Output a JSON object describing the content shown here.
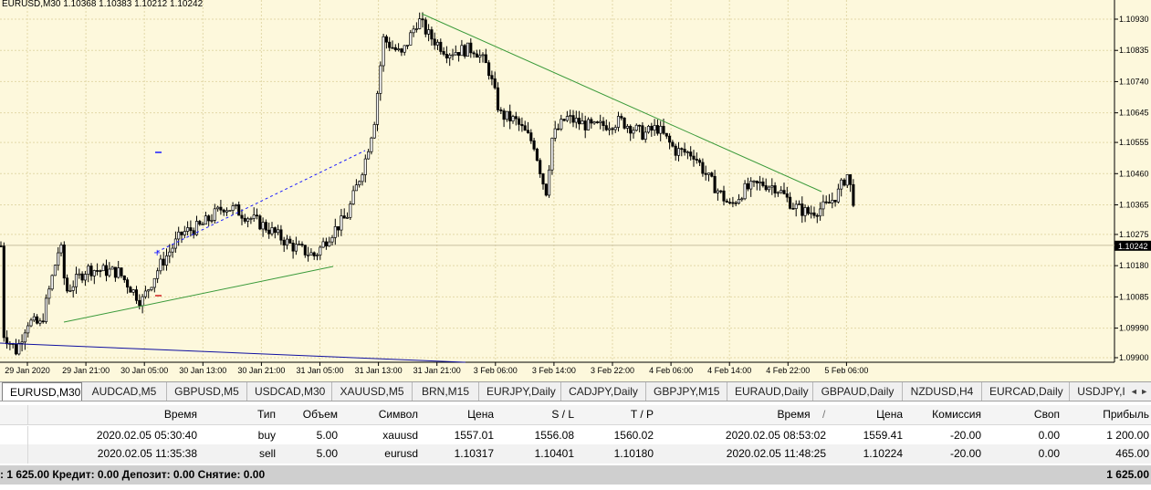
{
  "chart": {
    "title": "EURUSD,M30  1.10368 1.10383 1.10212 1.10242",
    "current_price": "1.10242",
    "price_labels": [
      "1.10930",
      "1.10835",
      "1.10740",
      "1.10645",
      "1.10555",
      "1.10460",
      "1.10365",
      "1.10275",
      "1.10180",
      "1.10085",
      "1.09990",
      "1.09900"
    ],
    "time_labels": [
      "29 Jan 2020",
      "29 Jan 21:00",
      "30 Jan 05:00",
      "30 Jan 13:00",
      "30 Jan 21:00",
      "31 Jan 05:00",
      "31 Jan 13:00",
      "31 Jan 21:00",
      "3 Feb 06:00",
      "3 Feb 14:00",
      "3 Feb 22:00",
      "4 Feb 06:00",
      "4 Feb 14:00",
      "4 Feb 22:00",
      "5 Feb 06:00"
    ],
    "colors": {
      "background": "#fdf8dc",
      "grid": "#e2d8a8",
      "candle": "#000000",
      "trend_green": "#3a9a3a",
      "trend_blue": "#1010a0",
      "dashed": "#1a1aff",
      "price_line": "#c8c0a0"
    }
  },
  "tabs": [
    {
      "label": "EURUSD,M30",
      "active": true
    },
    {
      "label": "AUDCAD,M5"
    },
    {
      "label": "GBPUSD,M5"
    },
    {
      "label": "USDCAD,M30"
    },
    {
      "label": "XAUUSD,M5"
    },
    {
      "label": "BRN,M15"
    },
    {
      "label": "EURJPY,Daily"
    },
    {
      "label": "CADJPY,Daily"
    },
    {
      "label": "GBPJPY,M15"
    },
    {
      "label": "EURAUD,Daily"
    },
    {
      "label": "GBPAUD,Daily"
    },
    {
      "label": "NZDUSD,H4"
    },
    {
      "label": "EURCAD,Daily"
    },
    {
      "label": "USDJPY,I"
    }
  ],
  "tab_arrows": "◄ ►",
  "table": {
    "headers": {
      "time": "Время",
      "type": "Тип",
      "volume": "Объем",
      "symbol": "Символ",
      "price": "Цена",
      "sl": "S / L",
      "tp": "T / P",
      "time2": "Время",
      "sort_mark": "/",
      "price2": "Цена",
      "commission": "Комиссия",
      "swap": "Своп",
      "profit": "Прибыль"
    },
    "rows": [
      {
        "time": "2020.02.05 05:30:40",
        "type": "buy",
        "volume": "5.00",
        "symbol": "xauusd",
        "price": "1557.01",
        "sl": "1556.08",
        "tp": "1560.02",
        "time2": "2020.02.05 08:53:02",
        "price2": "1559.41",
        "commission": "-20.00",
        "swap": "0.00",
        "profit": "1 200.00"
      },
      {
        "time": "2020.02.05 11:35:38",
        "type": "sell",
        "volume": "5.00",
        "symbol": "eurusd",
        "price": "1.10317",
        "sl": "1.10401",
        "tp": "1.10180",
        "time2": "2020.02.05 11:48:25",
        "price2": "1.10224",
        "commission": "-20.00",
        "swap": "0.00",
        "profit": "465.00"
      }
    ]
  },
  "summary": {
    "text": ": 1 625.00  Кредит: 0.00  Депозит: 0.00  Снятие: 0.00",
    "total": "1 625.00"
  }
}
